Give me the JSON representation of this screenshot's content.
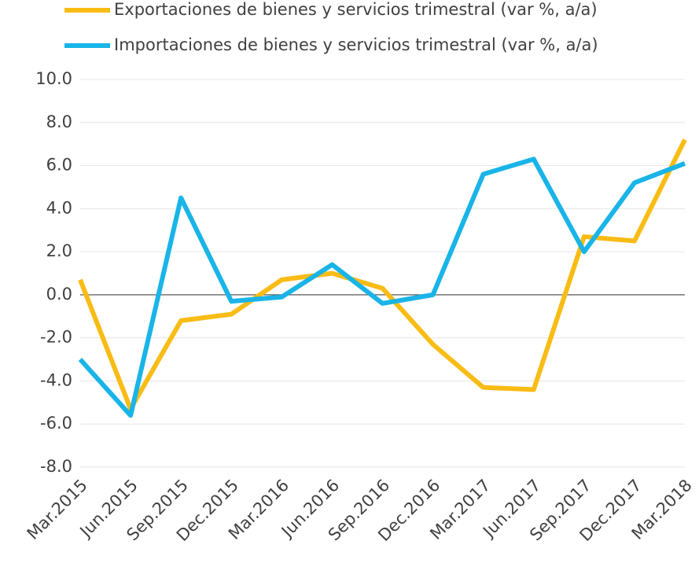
{
  "chart_data": {
    "type": "line",
    "categories": [
      "Mar.2015",
      "Jun.2015",
      "Sep.2015",
      "Dec.2015",
      "Mar.2016",
      "Jun.2016",
      "Sep.2016",
      "Dec.2016",
      "Mar.2017",
      "Jun.2017",
      "Sep.2017",
      "Dec.2017",
      "Mar.2018"
    ],
    "series": [
      {
        "name": "Exportaciones de bienes y servicios trimestral (var %, a/a)",
        "color": "#f9bc15",
        "values": [
          0.7,
          -5.3,
          -1.2,
          -0.9,
          0.7,
          1.0,
          0.3,
          -2.3,
          -4.3,
          -4.4,
          2.7,
          2.5,
          7.2
        ]
      },
      {
        "name": "Importaciones de bienes y servicios trimestral (var %, a/a)",
        "color": "#19b4e8",
        "values": [
          -3.0,
          -5.6,
          4.5,
          -0.3,
          -0.1,
          1.4,
          -0.4,
          0.0,
          5.6,
          6.3,
          2.0,
          5.2,
          6.1
        ]
      }
    ],
    "ylim": [
      -8,
      10
    ],
    "yticks": [
      {
        "value": -8,
        "label": "-8.0"
      },
      {
        "value": -6,
        "label": "-6.0"
      },
      {
        "value": -4,
        "label": "-4.0"
      },
      {
        "value": -2,
        "label": "-2.0"
      },
      {
        "value": 0,
        "label": "0.0"
      },
      {
        "value": 2,
        "label": "2.0"
      },
      {
        "value": 4,
        "label": "4.0"
      },
      {
        "value": 6,
        "label": "6.0"
      },
      {
        "value": 8,
        "label": "8.0"
      },
      {
        "value": 10,
        "label": "10.0"
      }
    ],
    "grid": true,
    "legend": "top"
  }
}
